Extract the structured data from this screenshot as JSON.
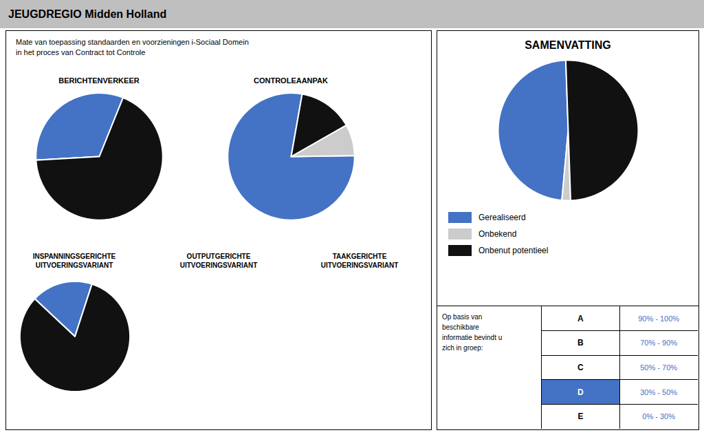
{
  "title": "JEUGDREGIO Midden Holland",
  "subtitle": "Mate van toepassing standaarden en voorzieningen i-Sociaal Domein\nin het proces van Contract tot Controle",
  "annotations": [
    "OUTPUTGERICHTE\nUITVOERINGSVARIANT",
    "TAAKGERICHTE\nUITVOERINGSVARIANT"
  ],
  "chart_data": [
    {
      "type": "pie",
      "title": "BERICHTENVERKEER",
      "categories": [
        "Gerealiseerd",
        "Onbekend",
        "Onbenut potentieel"
      ],
      "values": [
        32,
        0.001,
        68
      ],
      "colors": [
        "#4472C4",
        "#cccccc",
        "#111111"
      ]
    },
    {
      "type": "pie",
      "title": "CONTROLEAANPAK",
      "categories": [
        "Gerealiseerd",
        "Onbekend",
        "Onbenut potentieel"
      ],
      "values": [
        78,
        8,
        14
      ],
      "colors": [
        "#4472C4",
        "#cccccc",
        "#111111"
      ]
    },
    {
      "type": "pie",
      "title": "INSPANNINGSGERICHTE\nUITVOERINGSVARIANT",
      "categories": [
        "Gerealiseerd",
        "Onbekend",
        "Onbenut potentieel"
      ],
      "values": [
        18,
        0.001,
        82
      ],
      "colors": [
        "#4472C4",
        "#cccccc",
        "#111111"
      ]
    },
    {
      "type": "pie",
      "title": "SAMENVATTING",
      "categories": [
        "Gerealiseerd",
        "Onbekend",
        "Onbenut potentieel"
      ],
      "values": [
        48,
        2,
        50
      ],
      "colors": [
        "#4472C4",
        "#cccccc",
        "#111111"
      ],
      "legend": "bottom"
    },
    {
      "type": "table",
      "title": "Op basis van\nbeschikbare\ninformatie bevindt u\nzich in groep:",
      "categories": [
        "A",
        "B",
        "C",
        "D",
        "E"
      ],
      "labels": [
        "90% - 100%",
        "70% - 90%",
        "50% - 70%",
        "30% - 50%",
        "0% - 30%"
      ],
      "highlight": "D",
      "color": "#4472C4"
    }
  ]
}
